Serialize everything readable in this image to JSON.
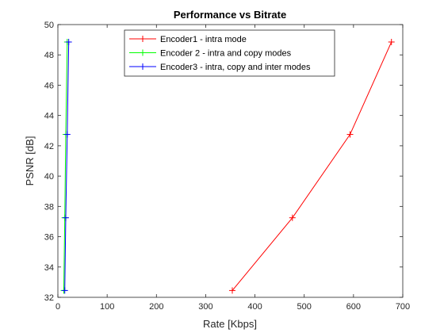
{
  "chart_data": {
    "type": "line",
    "title": "Performance vs Bitrate",
    "xlabel": "Rate [Kbps]",
    "ylabel": "PSNR [dB]",
    "xlim": [
      0,
      700
    ],
    "ylim": [
      32,
      50
    ],
    "xticks": [
      0,
      100,
      200,
      300,
      400,
      500,
      600,
      700
    ],
    "yticks": [
      32,
      34,
      36,
      38,
      40,
      42,
      44,
      46,
      48,
      50
    ],
    "xtick_labels": [
      "0",
      "100",
      "200",
      "300",
      "400",
      "500",
      "600",
      "700"
    ],
    "ytick_labels": [
      "32",
      "34",
      "36",
      "38",
      "40",
      "42",
      "44",
      "46",
      "48",
      "50"
    ],
    "grid": false,
    "legend_position": "top-center",
    "series": [
      {
        "name": "Encoder1 - intra mode",
        "color": "#ff0000",
        "marker": "plus",
        "x": [
          354,
          476,
          593,
          677
        ],
        "y": [
          32.45,
          37.25,
          42.75,
          48.85
        ]
      },
      {
        "name": "Encoder 2 - intra and copy modes",
        "color": "#00ff00",
        "marker": "plus",
        "x": [
          12,
          14,
          16,
          19
        ],
        "y": [
          32.45,
          37.25,
          42.75,
          48.85
        ]
      },
      {
        "name": "Encoder3 - intra, copy and inter modes",
        "color": "#0000ff",
        "marker": "plus",
        "x": [
          14,
          16,
          19,
          22
        ],
        "y": [
          32.45,
          37.25,
          42.75,
          48.85
        ]
      }
    ]
  }
}
